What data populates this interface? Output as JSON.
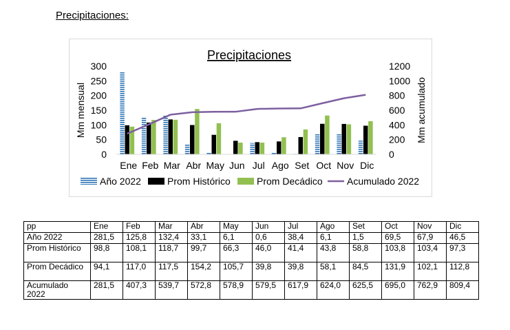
{
  "document": {
    "heading": "Precipitaciones:"
  },
  "chart_data": {
    "type": "bar",
    "title": "Precipitaciones",
    "categories": [
      "Ene",
      "Feb",
      "Mar",
      "Abr",
      "May",
      "Jun",
      "Jul",
      "Ago",
      "Set",
      "Oct",
      "Nov",
      "Dic"
    ],
    "ylabel": "Mm mensual",
    "y2label": "Mm acumulado",
    "ylim": [
      0,
      300
    ],
    "y2lim": [
      0,
      1200
    ],
    "yticks": [
      "0",
      "50",
      "100",
      "150",
      "200",
      "250",
      "300"
    ],
    "y2ticks": [
      "0",
      "200",
      "400",
      "600",
      "800",
      "1000",
      "1200"
    ],
    "legend_position": "bottom",
    "series": [
      {
        "name": "Año 2022",
        "kind": "bar",
        "axis": "left",
        "color": "#2e75b6",
        "pattern": "horizontal-stripes",
        "values": [
          281.5,
          125.8,
          132.4,
          33.1,
          6.1,
          0.6,
          38.4,
          6.1,
          1.5,
          69.5,
          67.9,
          46.5
        ]
      },
      {
        "name": "Prom Histórico",
        "kind": "bar",
        "axis": "left",
        "color": "#000000",
        "values": [
          98.8,
          108.1,
          118.7,
          99.7,
          66.3,
          46.0,
          41.4,
          43.8,
          58.8,
          103.8,
          103.4,
          97.3
        ]
      },
      {
        "name": "Prom Decádico",
        "kind": "bar",
        "axis": "left",
        "color": "#92c050",
        "values": [
          94.1,
          117.0,
          117.5,
          154.2,
          105.7,
          39.8,
          39.8,
          58.1,
          84.5,
          131.9,
          102.1,
          112.8
        ]
      },
      {
        "name": "Acumulado 2022",
        "kind": "line",
        "axis": "right",
        "color": "#7d5fa0",
        "values": [
          281.5,
          407.3,
          539.7,
          572.8,
          578.9,
          579.5,
          617.9,
          624.0,
          625.5,
          695.0,
          762.9,
          809.4
        ]
      }
    ]
  },
  "table": {
    "header": [
      "pp",
      "Ene",
      "Feb",
      "Mar",
      "Abr",
      "May",
      "Jun",
      "Jul",
      "Ago",
      "Set",
      "Oct",
      "Nov",
      "Dic"
    ],
    "rows": [
      {
        "label": "Año 2022",
        "values": [
          "281,5",
          "125,8",
          "132,4",
          "33,1",
          "6,1",
          "0,6",
          "38,4",
          "6,1",
          "1,5",
          "69,5",
          "67,9",
          "46,5"
        ]
      },
      {
        "label": "Prom Histórico",
        "values": [
          "98,8",
          "108,1",
          "118,7",
          "99,7",
          "66,3",
          "46,0",
          "41,4",
          "43,8",
          "58,8",
          "103,8",
          "103,4",
          "97,3"
        ]
      },
      {
        "label": "Prom Decádico",
        "values": [
          "94,1",
          "117,0",
          "117,5",
          "154,2",
          "105,7",
          "39,8",
          "39,8",
          "58,1",
          "84,5",
          "131,9",
          "102,1",
          "112,8"
        ]
      },
      {
        "label": "Acumulado 2022",
        "values": [
          "281,5",
          "407,3",
          "539,7",
          "572,8",
          "578,9",
          "579,5",
          "617,9",
          "624,0",
          "625,5",
          "695,0",
          "762,9",
          "809,4"
        ]
      }
    ]
  }
}
